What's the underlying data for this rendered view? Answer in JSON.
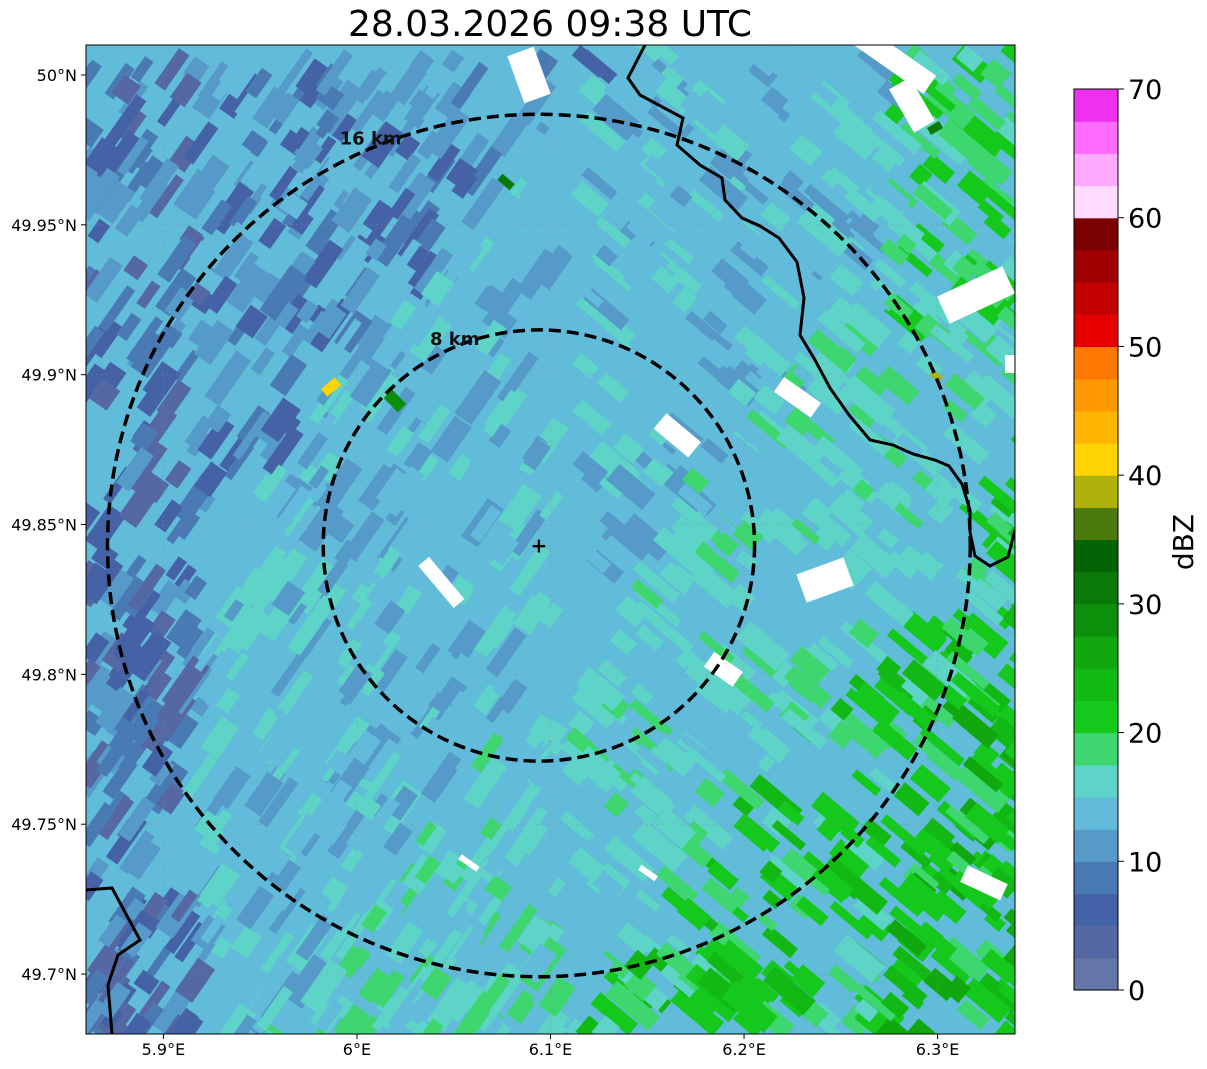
{
  "title": "28.03.2026 09:38 UTC",
  "map": {
    "lon_range": [
      5.86,
      6.34
    ],
    "lat_range": [
      49.68,
      50.01
    ],
    "lon_ticks": [
      {
        "value": 5.9,
        "label": "5.9°E"
      },
      {
        "value": 6.0,
        "label": "6°E"
      },
      {
        "value": 6.1,
        "label": "6.1°E"
      },
      {
        "value": 6.2,
        "label": "6.2°E"
      },
      {
        "value": 6.3,
        "label": "6.3°E"
      }
    ],
    "lat_ticks": [
      {
        "value": 50.0,
        "label": "50°N"
      },
      {
        "value": 49.95,
        "label": "49.95°N"
      },
      {
        "value": 49.9,
        "label": "49.9°N"
      },
      {
        "value": 49.85,
        "label": "49.85°N"
      },
      {
        "value": 49.8,
        "label": "49.8°N"
      },
      {
        "value": 49.75,
        "label": "49.75°N"
      },
      {
        "value": 49.7,
        "label": "49.7°N"
      }
    ],
    "radar_site": {
      "lon": 6.094,
      "lat": 49.843,
      "symbol": "+"
    },
    "range_rings": [
      {
        "label": "8 km",
        "radius_km": 8
      },
      {
        "label": "16 km",
        "radius_km": 16
      }
    ]
  },
  "colorbar": {
    "label": "dBZ",
    "min": 0,
    "max": 70,
    "step": 2.5,
    "tick_labels": [
      "0",
      "10",
      "20",
      "30",
      "40",
      "50",
      "60",
      "70"
    ],
    "colors": [
      "#6475a8",
      "#5568a3",
      "#4662a6",
      "#4a7ab3",
      "#569ac9",
      "#63bbdb",
      "#5ed4c8",
      "#3ed66e",
      "#14c81c",
      "#12b914",
      "#10a80e",
      "#0d8f0c",
      "#097a08",
      "#046306",
      "#4c7a0c",
      "#adb10a",
      "#ffd400",
      "#ffb400",
      "#ff9800",
      "#ff7700",
      "#e50000",
      "#c40000",
      "#a00000",
      "#7b0000",
      "#ffdcff",
      "#ffaaff",
      "#ff6cff",
      "#ef31ef"
    ]
  }
}
